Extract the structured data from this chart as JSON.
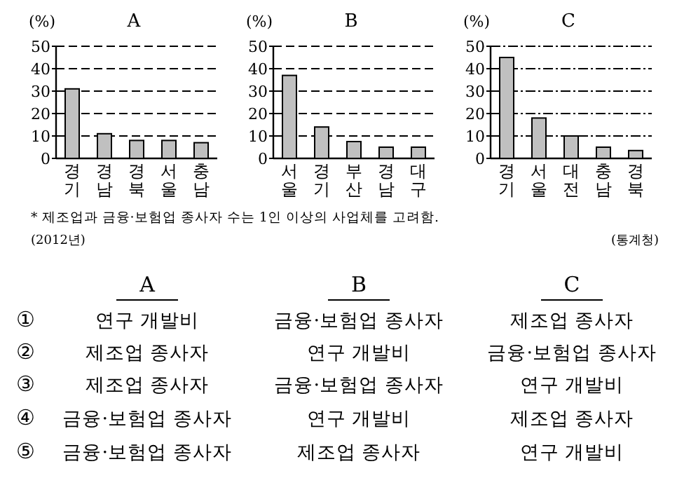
{
  "chart_data": [
    {
      "type": "bar",
      "title": "A",
      "ylabel": "(%)",
      "categories": [
        "경기",
        "경남",
        "경북",
        "서울",
        "충남"
      ],
      "values": [
        31,
        11,
        8,
        8,
        7
      ],
      "color": "#c0c0c0",
      "ylim": [
        0,
        50
      ],
      "yticks": [
        0,
        10,
        20,
        30,
        40,
        50
      ],
      "grid": "y",
      "line_style": "dashed"
    },
    {
      "type": "bar",
      "title": "B",
      "ylabel": "(%)",
      "categories": [
        "서울",
        "경기",
        "부산",
        "경남",
        "대구"
      ],
      "values": [
        37,
        14,
        7.5,
        5,
        5
      ],
      "color": "#c0c0c0",
      "ylim": [
        0,
        50
      ],
      "yticks": [
        0,
        10,
        20,
        30,
        40,
        50
      ],
      "grid": "y",
      "line_style": "dashed"
    },
    {
      "type": "bar",
      "title": "C",
      "ylabel": "(%)",
      "categories": [
        "경기",
        "서울",
        "대전",
        "충남",
        "경북"
      ],
      "values": [
        45,
        18,
        10,
        5,
        3.5
      ],
      "color": "#c0c0c0",
      "ylim": [
        0,
        50
      ],
      "yticks": [
        0,
        10,
        20,
        30,
        40,
        50
      ],
      "grid": "y",
      "line_style": "dashdot"
    },
    {
      "type": "other",
      "annotations": [
        "* 제조업과 금융·보험업 종사자 수는 1인 이상의 사업체를 고려함.",
        "(2012년)",
        "(통계청)"
      ],
      "categories": [
        "A",
        "B",
        "C"
      ],
      "y_categories": [
        "①",
        "②",
        "③",
        "④",
        "⑤"
      ],
      "cell_labels": [
        [
          "연구 개발비",
          "금융·보험업 종사자",
          "제조업 종사자"
        ],
        [
          "제조업 종사자",
          "연구 개발비",
          "금융·보험업 종사자"
        ],
        [
          "제조업 종사자",
          "금융·보험업 종사자",
          "연구 개발비"
        ],
        [
          "금융·보험업 종사자",
          "연구 개발비",
          "제조업 종사자"
        ],
        [
          "금융·보험업 종사자",
          "제조업 종사자",
          "연구 개발비"
        ]
      ]
    }
  ]
}
